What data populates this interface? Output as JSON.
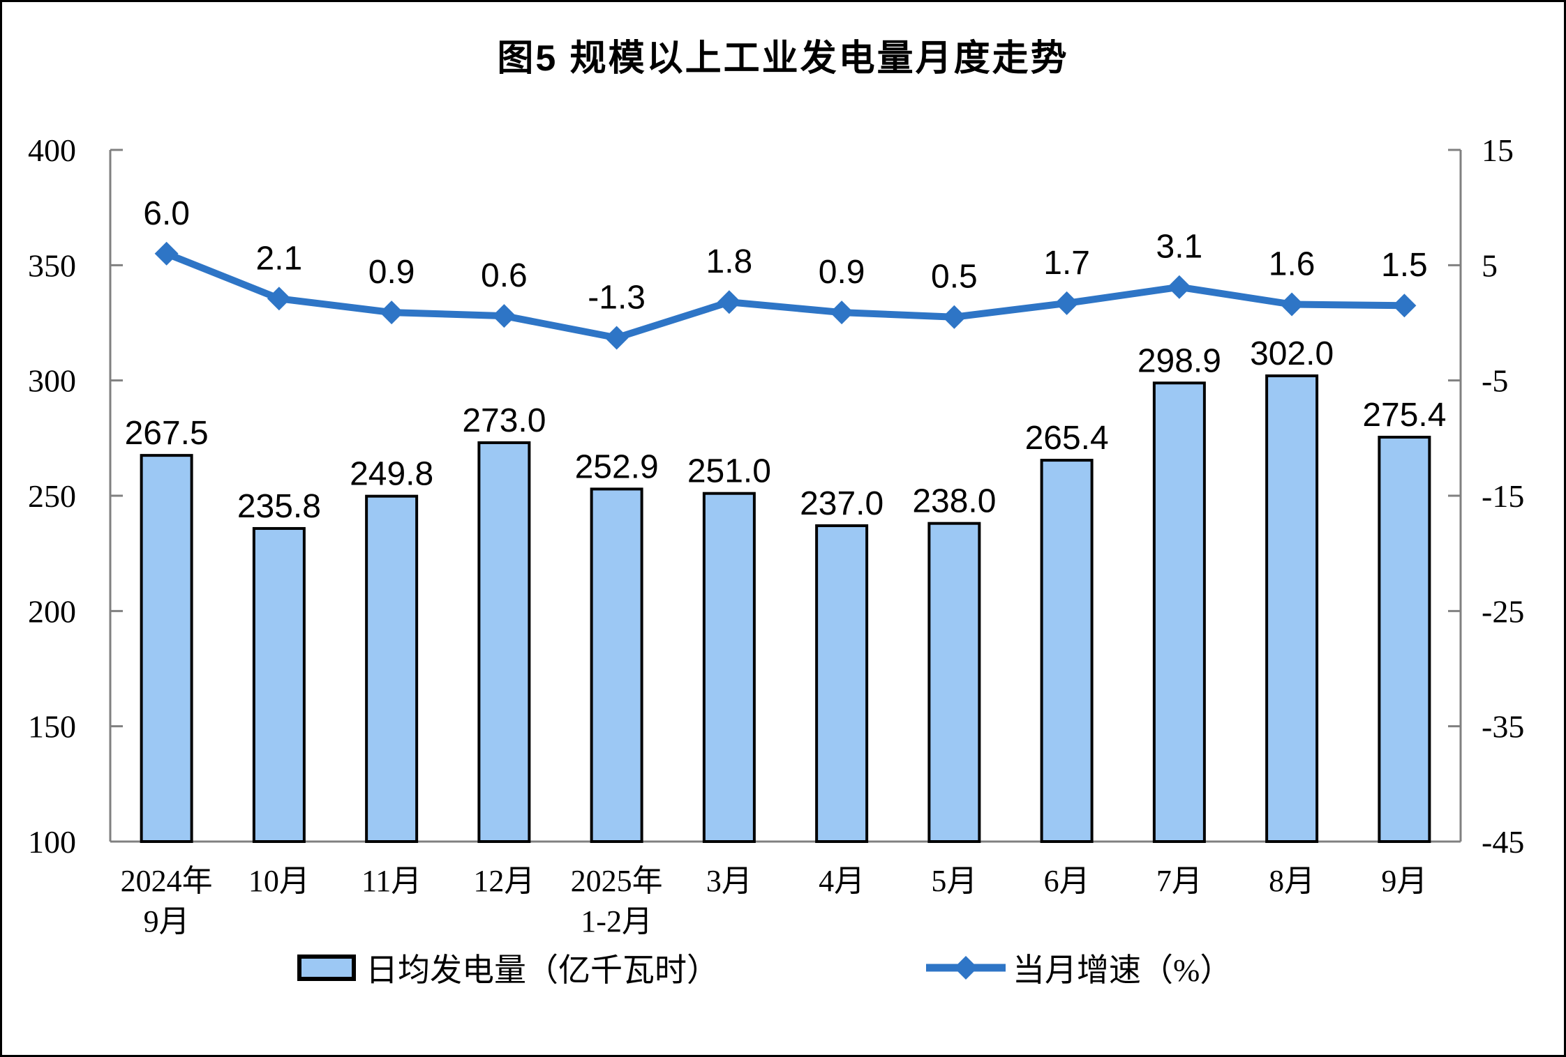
{
  "title": "图5 规模以上工业发电量月度走势",
  "colors": {
    "bar_fill": "#9CC8F4",
    "bar_border": "#000000",
    "line": "#2E75C6",
    "axis": "#808080",
    "text": "#000000"
  },
  "legend": {
    "bar_label": "日均发电量（亿千瓦时）",
    "line_label": "当月增速（%）"
  },
  "chart_data": {
    "type": "bar+line",
    "title": "图5 规模以上工业发电量月度走势",
    "categories": [
      "2024年\n9月",
      "10月",
      "11月",
      "12月",
      "2025年\n1-2月",
      "3月",
      "4月",
      "5月",
      "6月",
      "7月",
      "8月",
      "9月"
    ],
    "series": [
      {
        "name": "日均发电量（亿千瓦时）",
        "type": "bar",
        "axis": "left",
        "values": [
          267.5,
          235.8,
          249.8,
          273.0,
          252.9,
          251.0,
          237.0,
          238.0,
          265.4,
          298.9,
          302.0,
          275.4
        ],
        "labels": [
          "267.5",
          "235.8",
          "249.8",
          "273.0",
          "252.9",
          "251.0",
          "237.0",
          "238.0",
          "265.4",
          "298.9",
          "302.0",
          "275.4"
        ]
      },
      {
        "name": "当月增速（%）",
        "type": "line",
        "axis": "right",
        "values": [
          6.0,
          2.1,
          0.9,
          0.6,
          -1.3,
          1.8,
          0.9,
          0.5,
          1.7,
          3.1,
          1.6,
          1.5
        ],
        "labels": [
          "6.0",
          "2.1",
          "0.9",
          "0.6",
          "-1.3",
          "1.8",
          "0.9",
          "0.5",
          "1.7",
          "3.1",
          "1.6",
          "1.5"
        ]
      }
    ],
    "left_axis": {
      "min": 100,
      "max": 400,
      "tick_step": 50,
      "tick_labels": [
        "100",
        "150",
        "200",
        "250",
        "300",
        "350",
        "400"
      ]
    },
    "right_axis": {
      "min": -45,
      "max": 15,
      "tick_step": 10,
      "tick_labels": [
        "-45",
        "-35",
        "-25",
        "-15",
        "-5",
        "5",
        "15"
      ]
    },
    "grid": false,
    "legend_position": "bottom"
  }
}
